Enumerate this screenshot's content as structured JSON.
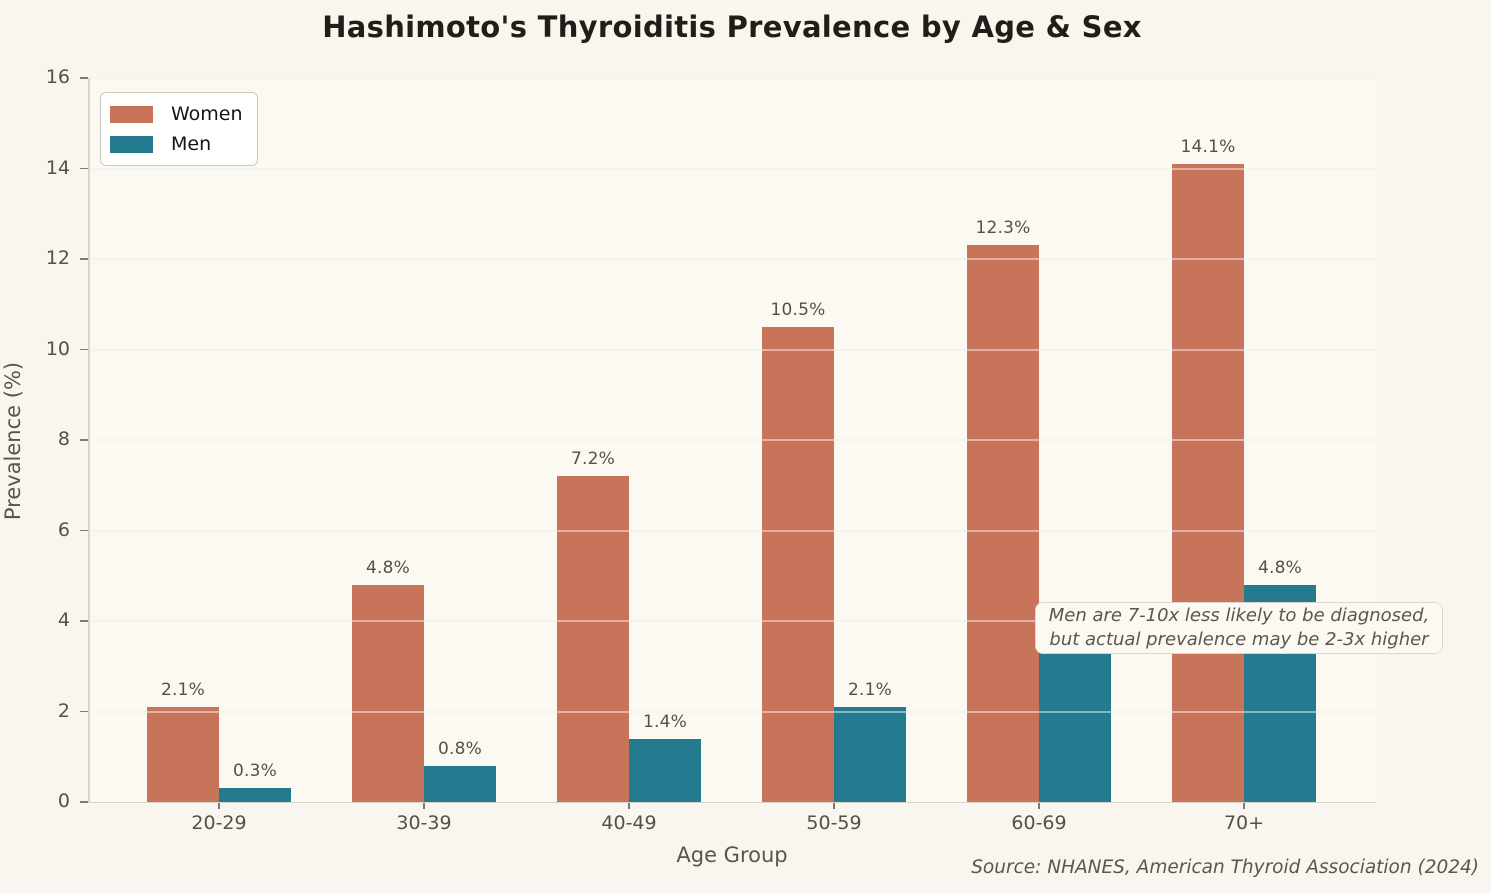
{
  "title": "Hashimoto's Thyroiditis Prevalence by Age & Sex",
  "source": "Source: NHANES, American Thyroid Association (2024)",
  "annotation": {
    "line1": "Men are 7-10x less likely to be diagnosed,",
    "line2": "but actual prevalence may be 2-3x higher"
  },
  "colors": {
    "women": "#C7745B",
    "men": "#247B90",
    "background": "#f9f6ef",
    "grid": "#efece4",
    "text": "#55504a"
  },
  "chart_data": {
    "type": "bar",
    "title": "Hashimoto's Thyroiditis Prevalence by Age & Sex",
    "categories": [
      "20-29",
      "30-39",
      "40-49",
      "50-59",
      "60-69",
      "70+"
    ],
    "series": [
      {
        "name": "Women",
        "color": "#C7745B",
        "values": [
          2.1,
          4.8,
          7.2,
          10.5,
          12.3,
          14.1
        ]
      },
      {
        "name": "Men",
        "color": "#247B90",
        "values": [
          0.3,
          0.8,
          1.4,
          2.1,
          3.3,
          4.8
        ]
      }
    ],
    "label_suffix": "%",
    "xlabel": "Age Group",
    "ylabel": "Prevalence (%)",
    "ylim": [
      0,
      16
    ],
    "yticks": [
      0,
      2,
      4,
      6,
      8,
      10,
      12,
      14,
      16
    ],
    "grid": true,
    "legend_position": "upper-left",
    "note": "60-69 Men value label is occluded by the annotation box"
  }
}
